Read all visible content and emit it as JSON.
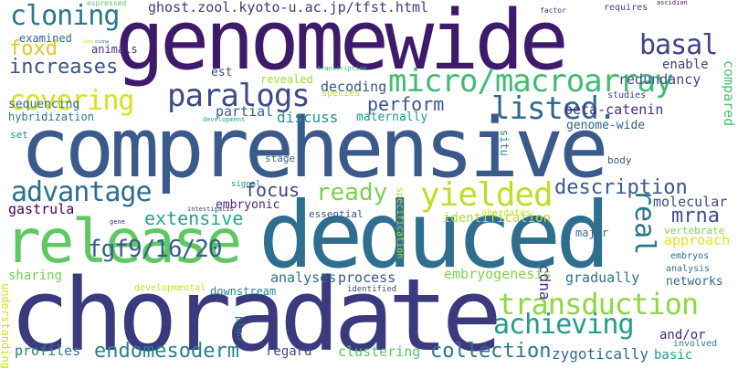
{
  "words": [
    {
      "text": "genomewide",
      "color": "#3f1a6b"
    },
    {
      "text": "comprehensive",
      "color": "#3b5a8c"
    },
    {
      "text": "choradate",
      "color": "#3c3a7e"
    },
    {
      "text": "deduced",
      "color": "#2e6e8e"
    },
    {
      "text": "release",
      "color": "#5ec962"
    },
    {
      "text": "micro/macroarray",
      "color": "#3fbc73"
    },
    {
      "text": "paralogs",
      "color": "#3e4a89"
    },
    {
      "text": "covering",
      "color": "#d7e219"
    },
    {
      "text": "transduction",
      "color": "#8fd744"
    },
    {
      "text": "yielded",
      "color": "#bddf26"
    },
    {
      "text": "advantage",
      "color": "#2d708e"
    },
    {
      "text": "achieving",
      "color": "#1f9e89"
    },
    {
      "text": "basal",
      "color": "#414487"
    },
    {
      "text": "listed.",
      "color": "#31688e"
    },
    {
      "text": "real",
      "color": "#2a788e"
    },
    {
      "text": "cloning",
      "color": "#2a788e"
    },
    {
      "text": "foxd",
      "color": "#e2c62a"
    },
    {
      "text": "increases",
      "color": "#3b528b"
    },
    {
      "text": "fgf9/16/20",
      "color": "#355f8d"
    },
    {
      "text": "ready",
      "color": "#7ad151"
    },
    {
      "text": "description",
      "color": "#38588c"
    },
    {
      "text": "extensive",
      "color": "#23a883"
    },
    {
      "text": "mrna",
      "color": "#3e4c8a"
    },
    {
      "text": "focus",
      "color": "#414487"
    },
    {
      "text": "perform",
      "color": "#3a548c"
    },
    {
      "text": "endomesoderm",
      "color": "#26828e"
    },
    {
      "text": "collection",
      "color": "#2c728e"
    },
    {
      "text": "sequencing",
      "color": "#31688e"
    },
    {
      "text": "hybridization",
      "color": "#2a788e"
    },
    {
      "text": "gastrula",
      "color": "#440154"
    },
    {
      "text": "sharing",
      "color": "#73d056"
    },
    {
      "text": "clustering",
      "color": "#58c765"
    },
    {
      "text": "zygotically",
      "color": "#2e6f8e"
    },
    {
      "text": "profiles",
      "color": "#26818e"
    },
    {
      "text": "approach",
      "color": "#e5e419"
    },
    {
      "text": "beta-catenin",
      "color": "#472d7b"
    },
    {
      "text": "partial",
      "color": "#33638d"
    },
    {
      "text": "discuss",
      "color": "#20928c"
    },
    {
      "text": "embryogenesis",
      "color": "#7fd34e"
    },
    {
      "text": "analyses",
      "color": "#2c728e"
    },
    {
      "text": "process",
      "color": "#3b528b"
    },
    {
      "text": "decoding",
      "color": "#3a548c"
    },
    {
      "text": "redundancy",
      "color": "#3e4989"
    },
    {
      "text": "enable",
      "color": "#424086"
    },
    {
      "text": "molecular",
      "color": "#3e4a89"
    },
    {
      "text": "gradually",
      "color": "#2d708e"
    },
    {
      "text": "regard",
      "color": "#3f4788"
    },
    {
      "text": "basic",
      "color": "#20a386"
    },
    {
      "text": "and/or",
      "color": "#482475"
    },
    {
      "text": "identification",
      "color": "#b5de2b"
    },
    {
      "text": "ghost.zool.kyoto-u.ac.jp/tfst.html",
      "color": "#453781"
    },
    {
      "text": "est",
      "color": "#3e4a89"
    },
    {
      "text": "revealed",
      "color": "#a2da37"
    },
    {
      "text": "examined",
      "color": "#31688e"
    },
    {
      "text": "animals",
      "color": "#46337f"
    },
    {
      "text": "maternally",
      "color": "#1f968b"
    },
    {
      "text": "genome-wide",
      "color": "#34618d"
    },
    {
      "text": "studies",
      "color": "#404588"
    },
    {
      "text": "embryonic",
      "color": "#482979"
    },
    {
      "text": "essential",
      "color": "#3c508b"
    },
    {
      "text": "major",
      "color": "#2e6e8e"
    },
    {
      "text": "downstream",
      "color": "#25858e"
    },
    {
      "text": "networks",
      "color": "#31688e"
    },
    {
      "text": "analysis",
      "color": "#2a788e"
    },
    {
      "text": "embryos",
      "color": "#2c728e"
    },
    {
      "text": "vertebrate",
      "color": "#7fd34e"
    },
    {
      "text": "involved",
      "color": "#24868e"
    },
    {
      "text": "developmental",
      "color": "#c8e020"
    },
    {
      "text": "identified",
      "color": "#3f4788"
    },
    {
      "text": "set",
      "color": "#20928c"
    },
    {
      "text": "stage",
      "color": "#31688e"
    },
    {
      "text": "body",
      "color": "#3a548c"
    },
    {
      "text": "signal",
      "color": "#21908d"
    },
    {
      "text": "species",
      "color": "#bddf26"
    },
    {
      "text": "chordates",
      "color": "#d0e11c"
    },
    {
      "text": "expressed",
      "color": "#5ec962"
    },
    {
      "text": "requires",
      "color": "#433e85"
    },
    {
      "text": "factor",
      "color": "#472a7a"
    },
    {
      "text": "ascidian",
      "color": "#471063"
    },
    {
      "text": "transcription",
      "color": "#35b779"
    },
    {
      "text": "development",
      "color": "#21a685"
    },
    {
      "text": "gene",
      "color": "#482677"
    },
    {
      "text": "intestinalis",
      "color": "#443983"
    },
    {
      "text": "specification",
      "color": "#b8de29"
    },
    {
      "text": "situ",
      "color": "#21918c"
    },
    {
      "text": "understanding",
      "color": "#cde11d"
    },
    {
      "text": "plan",
      "color": "#2a788e"
    },
    {
      "text": "cdna",
      "color": "#46327e"
    },
    {
      "text": "compared",
      "color": "#4ac16d"
    },
    {
      "text": "late",
      "color": "#c0df25"
    },
    {
      "text": "ciona",
      "color": "#31688e"
    }
  ]
}
